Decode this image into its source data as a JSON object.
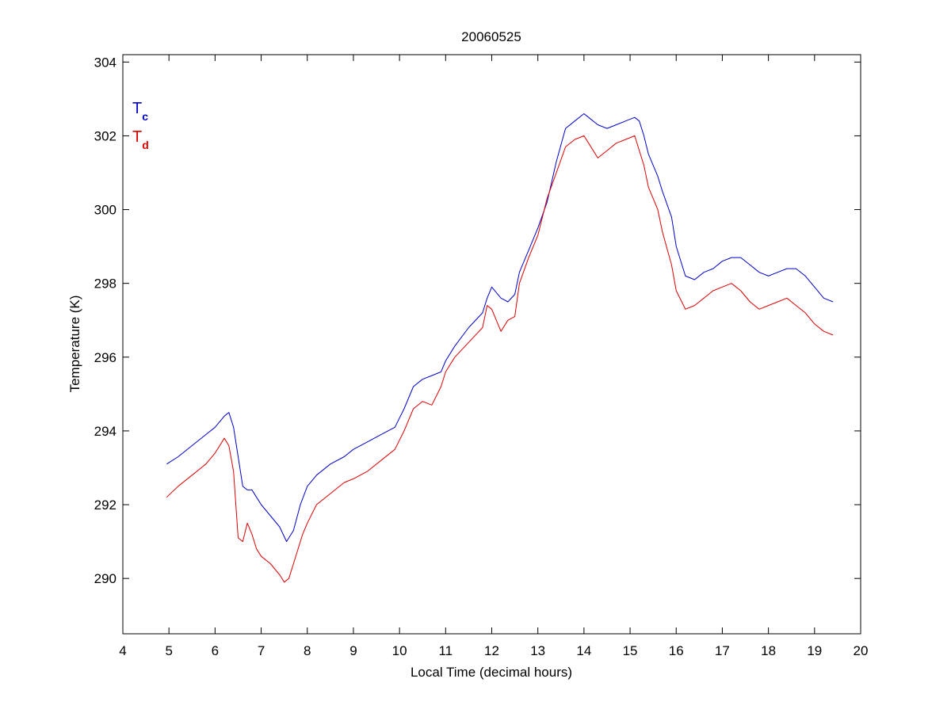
{
  "chart_data": {
    "type": "line",
    "title": "20060525",
    "xlabel": "Local Time (decimal hours)",
    "ylabel": "Temperature (K)",
    "xlim": [
      4,
      20
    ],
    "ylim": [
      288.5,
      304.2
    ],
    "xticks": [
      "4",
      "5",
      "6",
      "7",
      "8",
      "9",
      "10",
      "11",
      "12",
      "13",
      "14",
      "15",
      "16",
      "17",
      "18",
      "19",
      "20"
    ],
    "yticks": [
      "290",
      "292",
      "294",
      "296",
      "298",
      "300",
      "302",
      "304"
    ],
    "grid": false,
    "legend_position": "top-left",
    "series": [
      {
        "name": "Tc",
        "legend_main": "T",
        "legend_sub": "c",
        "color": "#0000cc",
        "x": [
          4.95,
          5.2,
          5.5,
          5.8,
          6.0,
          6.2,
          6.3,
          6.4,
          6.5,
          6.6,
          6.7,
          6.8,
          6.9,
          7.0,
          7.2,
          7.4,
          7.55,
          7.7,
          7.85,
          8.0,
          8.2,
          8.5,
          8.8,
          9.0,
          9.3,
          9.6,
          9.9,
          10.1,
          10.3,
          10.5,
          10.7,
          10.9,
          11.0,
          11.2,
          11.5,
          11.8,
          11.9,
          12.0,
          12.2,
          12.35,
          12.5,
          12.6,
          12.8,
          13.0,
          13.2,
          13.4,
          13.6,
          13.8,
          14.0,
          14.1,
          14.3,
          14.5,
          14.7,
          14.9,
          15.1,
          15.2,
          15.3,
          15.4,
          15.5,
          15.6,
          15.7,
          15.9,
          16.0,
          16.2,
          16.4,
          16.6,
          16.8,
          17.0,
          17.2,
          17.4,
          17.6,
          17.8,
          18.0,
          18.2,
          18.4,
          18.6,
          18.8,
          19.0,
          19.2,
          19.4
        ],
        "y": [
          293.1,
          293.3,
          293.6,
          293.9,
          294.1,
          294.4,
          294.5,
          294.1,
          293.3,
          292.5,
          292.4,
          292.4,
          292.2,
          292.0,
          291.7,
          291.4,
          291.0,
          291.3,
          292.0,
          292.5,
          292.8,
          293.1,
          293.3,
          293.5,
          293.7,
          293.9,
          294.1,
          294.6,
          295.2,
          295.4,
          295.5,
          295.6,
          295.9,
          296.3,
          296.8,
          297.2,
          297.6,
          297.9,
          297.6,
          297.5,
          297.7,
          298.3,
          298.9,
          299.5,
          300.2,
          301.3,
          302.2,
          302.4,
          302.6,
          302.5,
          302.3,
          302.2,
          302.3,
          302.4,
          302.5,
          302.4,
          302.0,
          301.5,
          301.2,
          300.9,
          300.5,
          299.8,
          299.0,
          298.2,
          298.1,
          298.3,
          298.4,
          298.6,
          298.7,
          298.7,
          298.5,
          298.3,
          298.2,
          298.3,
          298.4,
          298.4,
          298.2,
          297.9,
          297.6,
          297.5
        ]
      },
      {
        "name": "Td",
        "legend_main": "T",
        "legend_sub": "d",
        "color": "#dd0000",
        "x": [
          4.95,
          5.2,
          5.5,
          5.8,
          6.0,
          6.2,
          6.3,
          6.4,
          6.45,
          6.5,
          6.6,
          6.7,
          6.8,
          6.9,
          7.0,
          7.2,
          7.4,
          7.5,
          7.6,
          7.8,
          7.9,
          8.0,
          8.2,
          8.5,
          8.8,
          9.0,
          9.3,
          9.6,
          9.9,
          10.1,
          10.3,
          10.5,
          10.7,
          10.9,
          11.0,
          11.2,
          11.5,
          11.8,
          11.9,
          12.0,
          12.2,
          12.35,
          12.5,
          12.6,
          12.8,
          13.0,
          13.2,
          13.4,
          13.6,
          13.8,
          14.0,
          14.1,
          14.3,
          14.5,
          14.7,
          14.9,
          15.1,
          15.2,
          15.3,
          15.4,
          15.5,
          15.6,
          15.7,
          15.9,
          16.0,
          16.2,
          16.4,
          16.6,
          16.8,
          17.0,
          17.2,
          17.4,
          17.6,
          17.8,
          18.0,
          18.2,
          18.4,
          18.6,
          18.8,
          19.0,
          19.2,
          19.4
        ],
        "y": [
          292.2,
          292.5,
          292.8,
          293.1,
          293.4,
          293.8,
          293.6,
          292.9,
          292.0,
          291.1,
          291.0,
          291.5,
          291.2,
          290.8,
          290.6,
          290.4,
          290.1,
          289.9,
          290.0,
          290.8,
          291.2,
          291.5,
          292.0,
          292.3,
          292.6,
          292.7,
          292.9,
          293.2,
          293.5,
          294.0,
          294.6,
          294.8,
          294.7,
          295.2,
          295.6,
          296.0,
          296.4,
          296.8,
          297.4,
          297.3,
          296.7,
          297.0,
          297.1,
          298.0,
          298.7,
          299.3,
          300.3,
          301.0,
          301.7,
          301.9,
          302.0,
          301.8,
          301.4,
          301.6,
          301.8,
          301.9,
          302.0,
          301.6,
          301.2,
          300.6,
          300.3,
          300.0,
          299.4,
          298.5,
          297.8,
          297.3,
          297.4,
          297.6,
          297.8,
          297.9,
          298.0,
          297.8,
          297.5,
          297.3,
          297.4,
          297.5,
          297.6,
          297.4,
          297.2,
          296.9,
          296.7,
          296.6
        ]
      }
    ]
  }
}
